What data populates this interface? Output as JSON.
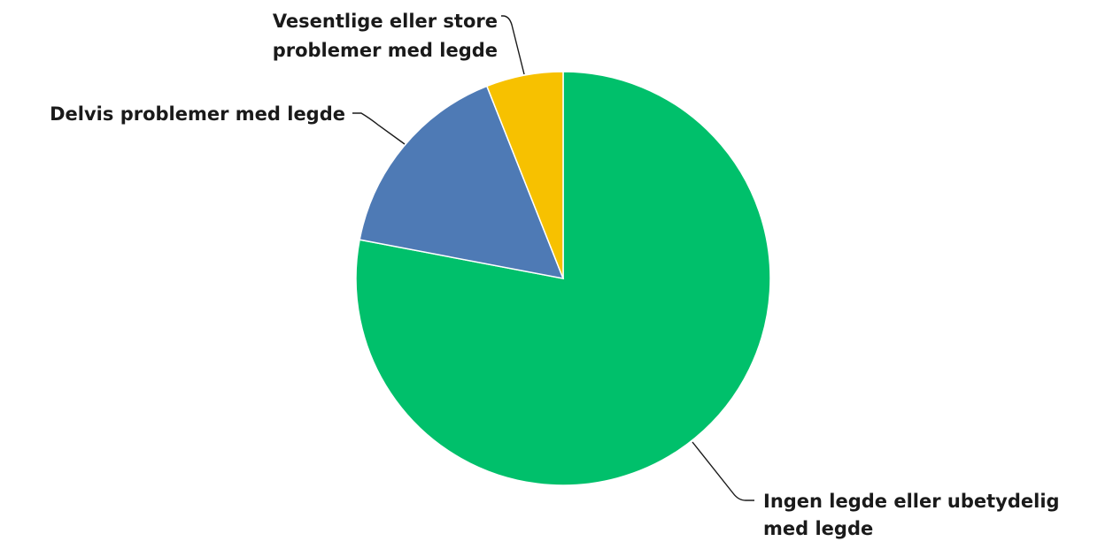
{
  "chart_data": {
    "type": "pie",
    "title": "",
    "start_angle_deg": 0,
    "direction": "clockwise",
    "slices": [
      {
        "label_lines": [
          "Ingen legde eller ubetydelig",
          "med legde"
        ],
        "value": 78,
        "color": "#00c06b"
      },
      {
        "label_lines": [
          "Delvis problemer med legde"
        ],
        "value": 16,
        "color": "#4e7ab5"
      },
      {
        "label_lines": [
          "Vesentlige eller store",
          "problemer med legde"
        ],
        "value": 6,
        "color": "#f7c100"
      }
    ]
  }
}
